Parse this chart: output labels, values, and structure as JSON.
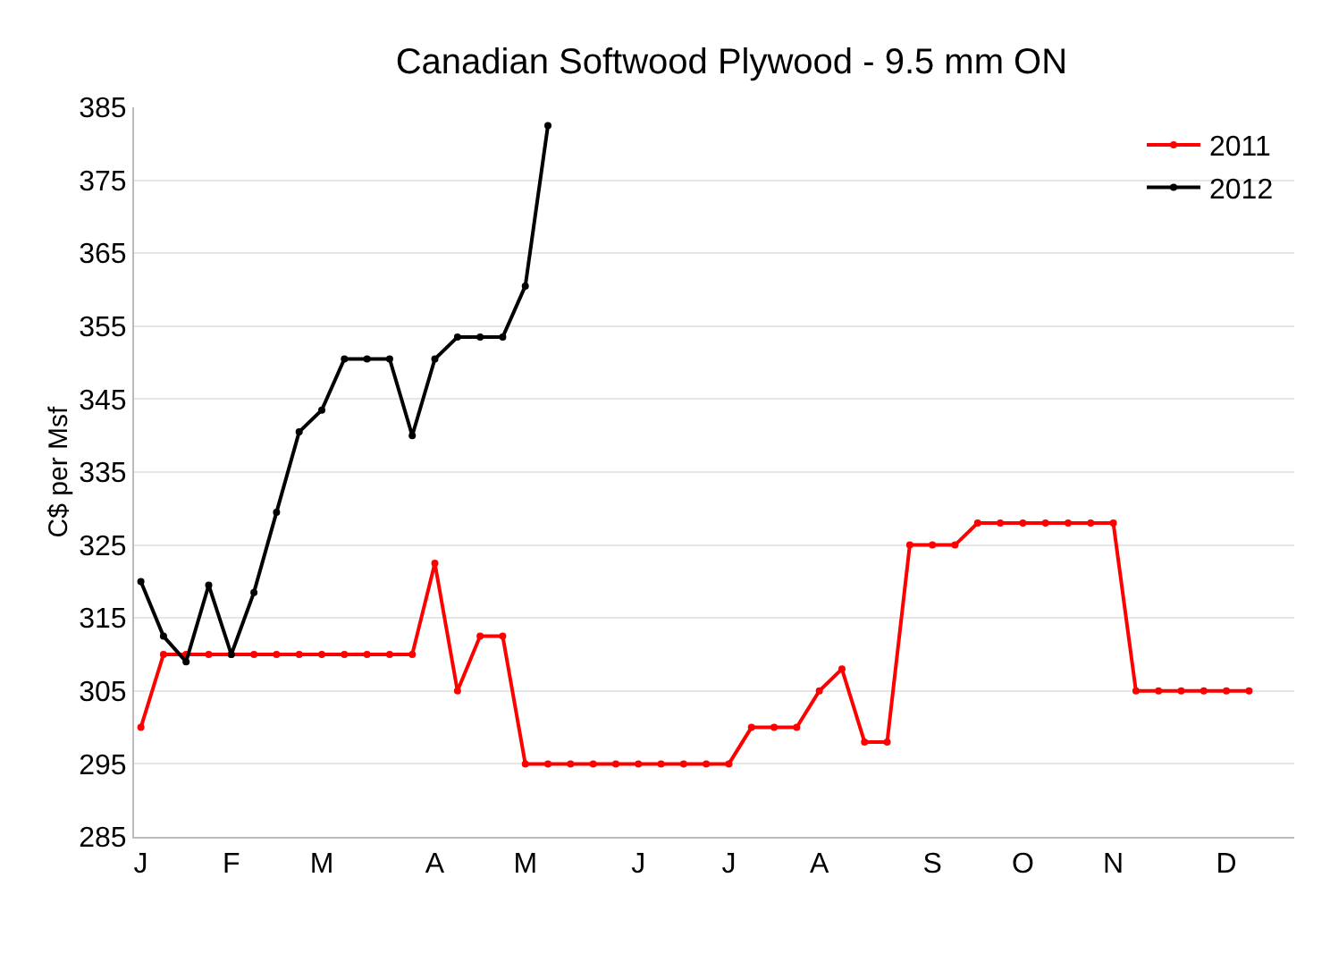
{
  "chart_data": {
    "type": "line",
    "title": "Canadian Softwood Plywood - 9.5 mm ON",
    "ylabel": "C$ per Msf",
    "categories": [
      "J",
      null,
      null,
      null,
      "F",
      null,
      null,
      null,
      "M",
      null,
      null,
      null,
      null,
      "A",
      null,
      null,
      null,
      "M",
      null,
      null,
      null,
      null,
      "J",
      null,
      null,
      null,
      "J",
      null,
      null,
      null,
      "A",
      null,
      null,
      null,
      null,
      "S",
      null,
      null,
      null,
      "O",
      null,
      null,
      null,
      "N",
      null,
      null,
      null,
      null,
      "D",
      null
    ],
    "series": [
      {
        "name": "2011",
        "color": "#ff0000",
        "values": [
          300,
          310,
          310,
          310,
          310,
          310,
          310,
          310,
          310,
          310,
          310,
          310,
          310,
          322.5,
          305,
          312.5,
          312.5,
          295,
          295,
          295,
          295,
          295,
          295,
          295,
          295,
          295,
          295,
          300,
          300,
          300,
          305,
          308,
          298,
          298,
          325,
          325,
          325,
          328,
          328,
          328,
          328,
          328,
          328,
          328,
          305,
          305,
          305,
          305,
          305,
          305
        ]
      },
      {
        "name": "2012",
        "color": "#000000",
        "values": [
          320,
          312.5,
          309,
          319.5,
          310,
          318.5,
          329.5,
          340.5,
          343.5,
          350.5,
          350.5,
          350.5,
          340,
          350.5,
          353.5,
          353.5,
          353.5,
          360.5,
          382.5,
          null,
          null,
          null,
          null,
          null,
          null,
          null,
          null,
          null,
          null,
          null,
          null,
          null,
          null,
          null,
          null,
          null,
          null,
          null,
          null,
          null,
          null,
          null,
          null,
          null,
          null,
          null,
          null,
          null,
          null,
          null
        ]
      }
    ],
    "ylim": [
      285,
      385
    ],
    "yticks": [
      285,
      295,
      305,
      315,
      325,
      335,
      345,
      355,
      365,
      375,
      385
    ],
    "grid": "y",
    "legend": "top right",
    "marker": "circle",
    "line_style": "solid"
  }
}
